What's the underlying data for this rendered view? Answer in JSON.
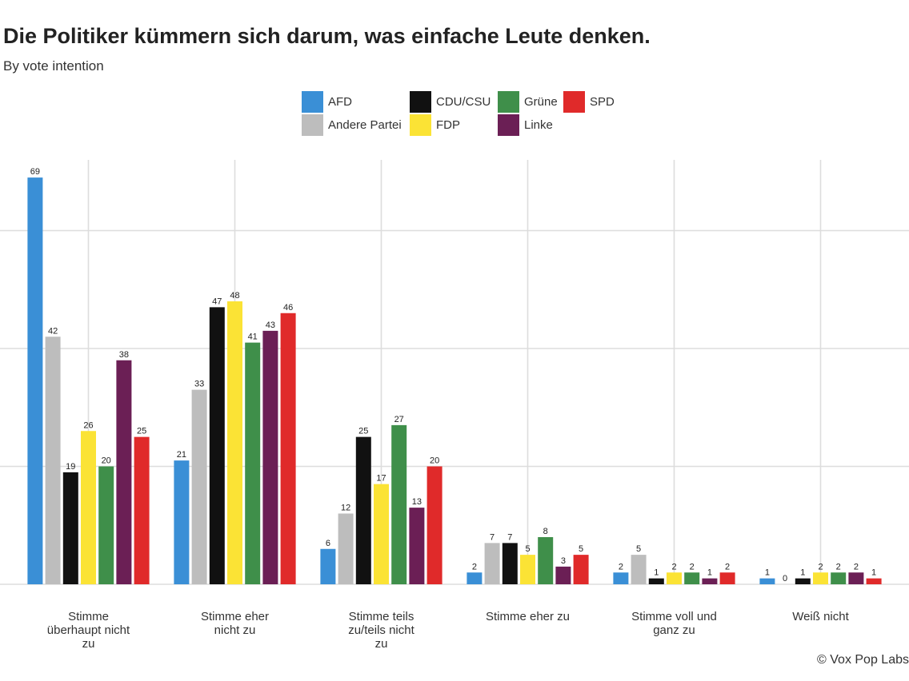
{
  "chart_data": {
    "type": "bar",
    "title": "Die Politiker kümmern sich darum, was einfache Leute denken.",
    "subtitle": "By vote intention",
    "xlabel": "",
    "ylabel": "",
    "ylim": [
      0,
      72
    ],
    "grid": true,
    "legend_position": "top",
    "categories": [
      [
        "Stimme",
        "überhaupt nicht",
        "zu"
      ],
      [
        "Stimme eher",
        "nicht zu"
      ],
      [
        "Stimme teils",
        "zu/teils nicht",
        "zu"
      ],
      [
        "Stimme eher zu"
      ],
      [
        "Stimme voll und",
        "ganz zu"
      ],
      [
        "Weiß nicht"
      ]
    ],
    "series": [
      {
        "name": "AFD",
        "color": "#3a8fd6",
        "values": [
          69,
          21,
          6,
          2,
          2,
          1
        ]
      },
      {
        "name": "Andere Partei",
        "color": "#bdbdbd",
        "values": [
          42,
          33,
          12,
          7,
          5,
          0
        ]
      },
      {
        "name": "CDU/CSU",
        "color": "#111111",
        "values": [
          19,
          47,
          25,
          7,
          1,
          1
        ]
      },
      {
        "name": "FDP",
        "color": "#fbe335",
        "values": [
          26,
          48,
          17,
          5,
          2,
          2
        ]
      },
      {
        "name": "Grüne",
        "color": "#3f8f4a",
        "values": [
          20,
          41,
          27,
          8,
          2,
          2
        ]
      },
      {
        "name": "Linke",
        "color": "#6b1f55",
        "values": [
          38,
          43,
          13,
          3,
          1,
          2
        ]
      },
      {
        "name": "SPD",
        "color": "#e02a2a",
        "values": [
          25,
          46,
          20,
          5,
          2,
          1
        ]
      }
    ]
  },
  "footer": {
    "credit": "© Vox Pop Labs"
  }
}
